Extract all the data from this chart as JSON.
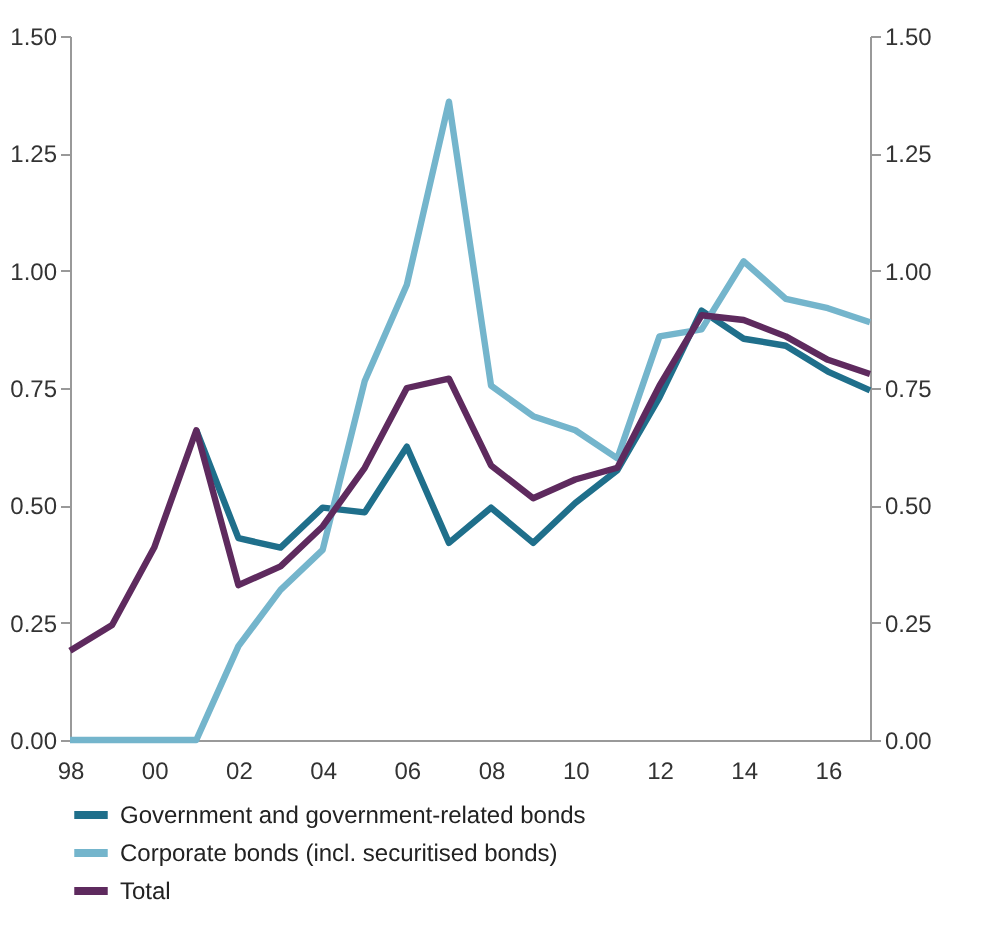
{
  "chart_data": {
    "type": "line",
    "categories": [
      "98",
      null,
      "00",
      null,
      "02",
      null,
      "04",
      null,
      "06",
      null,
      "08",
      null,
      "10",
      null,
      "12",
      null,
      "14",
      null,
      "16",
      null
    ],
    "series": [
      {
        "name": "Government and government-related bonds",
        "color": "#1f6f8b",
        "values": [
          null,
          null,
          null,
          0.66,
          0.43,
          0.41,
          0.495,
          0.485,
          0.625,
          0.42,
          0.495,
          0.42,
          0.505,
          0.575,
          0.73,
          0.915,
          0.855,
          0.84,
          0.785,
          0.745
        ]
      },
      {
        "name": "Corporate bonds (incl. securitised bonds)",
        "color": "#74b5cc",
        "values": [
          0,
          0,
          0,
          0,
          0.2,
          0.32,
          0.405,
          0.765,
          0.97,
          1.36,
          0.755,
          0.69,
          0.66,
          0.6,
          0.86,
          0.875,
          1.02,
          0.94,
          0.92,
          0.89
        ]
      },
      {
        "name": "Total",
        "color": "#5e2a5e",
        "values": [
          0.19,
          0.245,
          0.41,
          0.66,
          0.33,
          0.37,
          0.455,
          0.58,
          0.75,
          0.77,
          0.585,
          0.515,
          0.555,
          0.58,
          0.755,
          0.905,
          0.895,
          0.86,
          0.81,
          0.78
        ]
      }
    ],
    "ylim": [
      0,
      1.5
    ],
    "yticks": [
      {
        "value": 0,
        "label": "0.00"
      },
      {
        "value": 0.25,
        "label": "0.25"
      },
      {
        "value": 0.5,
        "label": "0.50"
      },
      {
        "value": 0.75,
        "label": "0.75"
      },
      {
        "value": 1,
        "label": "1.00"
      },
      {
        "value": 1.25,
        "label": "1.25"
      },
      {
        "value": 1.5,
        "label": "1.50"
      }
    ],
    "y2lim": [
      0,
      1.5
    ],
    "y2ticks": [
      {
        "value": 0,
        "label": "0.00"
      },
      {
        "value": 0.25,
        "label": "0.25"
      },
      {
        "value": 0.5,
        "label": "0.50"
      },
      {
        "value": 0.75,
        "label": "0.75"
      },
      {
        "value": 1,
        "label": "1.00"
      },
      {
        "value": 1.25,
        "label": "1.25"
      },
      {
        "value": 1.5,
        "label": "1.50"
      }
    ],
    "grid": false,
    "legend": "bottom",
    "marker": "none",
    "line_style": "solid"
  }
}
